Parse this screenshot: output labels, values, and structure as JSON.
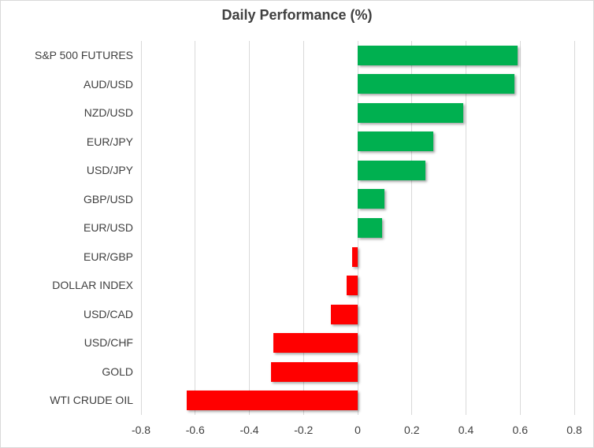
{
  "chart_data": {
    "type": "bar",
    "orientation": "horizontal",
    "title": "Daily Performance (%)",
    "categories": [
      "S&P 500 FUTURES",
      "AUD/USD",
      "NZD/USD",
      "EUR/JPY",
      "USD/JPY",
      "GBP/USD",
      "EUR/USD",
      "EUR/GBP",
      "DOLLAR INDEX",
      "USD/CAD",
      "USD/CHF",
      "GOLD",
      "WTI CRUDE OIL"
    ],
    "values": [
      0.59,
      0.58,
      0.39,
      0.28,
      0.25,
      0.1,
      0.09,
      -0.02,
      -0.04,
      -0.1,
      -0.31,
      -0.32,
      -0.63
    ],
    "xlabel": "",
    "ylabel": "",
    "xlim": [
      -0.8,
      0.8
    ],
    "x_ticks": [
      -0.8,
      -0.6,
      -0.4,
      -0.2,
      0,
      0.2,
      0.4,
      0.6,
      0.8
    ],
    "x_tick_labels": [
      "-0.8",
      "-0.6",
      "-0.4",
      "-0.2",
      "0",
      "0.2",
      "0.4",
      "0.6",
      "0.8"
    ],
    "grid": true,
    "legend": "none",
    "colors": {
      "positive": "#00B050",
      "negative": "#FF0000",
      "gridline": "#D9D9D9",
      "text": "#3F3F3F",
      "title_text": "#404040",
      "border": "#D9D9D9",
      "background": "#FFFFFF"
    }
  }
}
